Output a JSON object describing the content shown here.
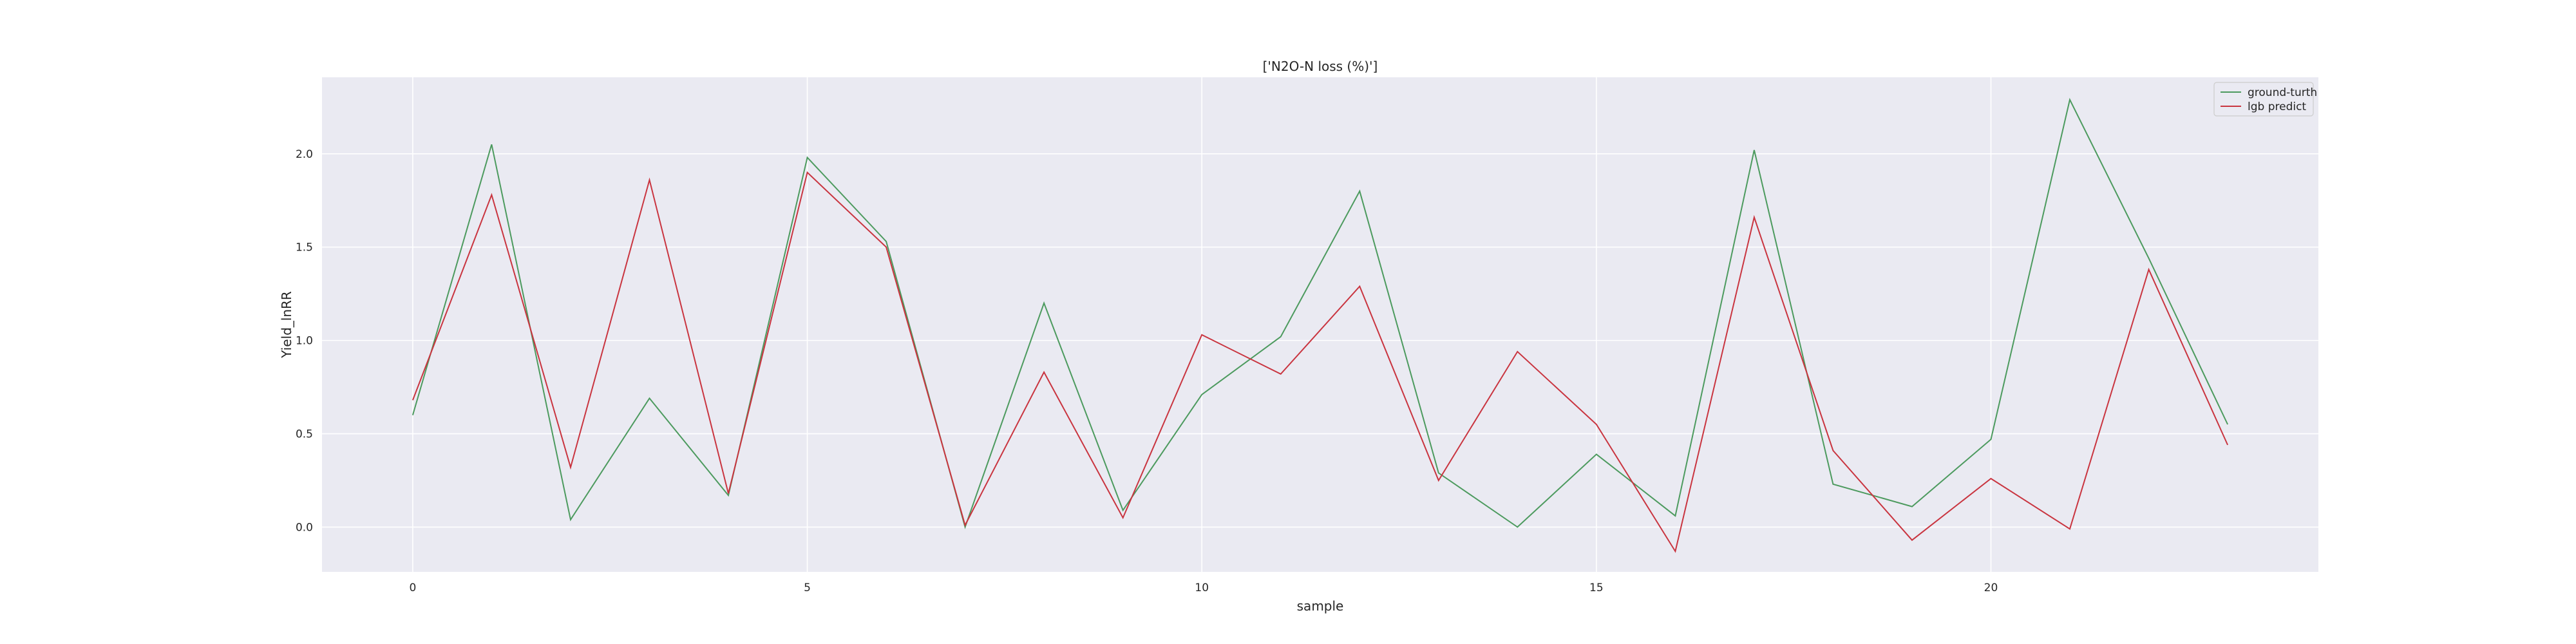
{
  "chart_data": {
    "type": "line",
    "title": "['N2O-N loss (%)']",
    "xlabel": "sample",
    "ylabel": "Yield_lnRR",
    "xlim": [
      -1.15,
      24.15
    ],
    "ylim": [
      -0.24,
      2.41
    ],
    "xticks": [
      0,
      5,
      10,
      15,
      20
    ],
    "yticks": [
      0.0,
      0.5,
      1.0,
      1.5,
      2.0
    ],
    "grid": true,
    "legend_position": "top-right",
    "x": [
      0,
      1,
      2,
      3,
      4,
      5,
      6,
      7,
      8,
      9,
      10,
      11,
      12,
      13,
      14,
      15,
      16,
      17,
      18,
      19,
      20,
      21,
      22,
      23
    ],
    "series": [
      {
        "name": "ground-turth",
        "color": "#4c9a5e",
        "values": [
          0.6,
          2.05,
          0.04,
          0.69,
          0.17,
          1.98,
          1.53,
          0.0,
          1.2,
          0.09,
          0.71,
          1.02,
          1.8,
          0.29,
          0.0,
          0.39,
          0.06,
          2.02,
          0.23,
          0.11,
          0.47,
          2.29,
          1.44,
          0.55
        ]
      },
      {
        "name": "lgb predict",
        "color": "#c9343f",
        "values": [
          0.68,
          1.78,
          0.32,
          1.86,
          0.18,
          1.9,
          1.5,
          0.01,
          0.83,
          0.05,
          1.03,
          0.82,
          1.29,
          0.25,
          0.94,
          0.55,
          -0.13,
          1.66,
          0.41,
          -0.07,
          0.26,
          -0.01,
          1.38,
          0.44
        ]
      }
    ]
  }
}
